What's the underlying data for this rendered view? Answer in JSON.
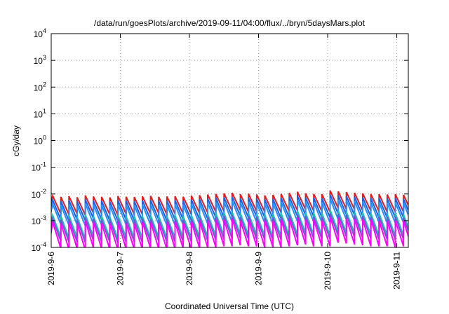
{
  "chart_data": {
    "type": "line",
    "title": "/data/run/goesPlots/archive/2019-09-11/04:00/flux/../bryn/5daysMars.plot",
    "xlabel": "Coordinated Universal Time (UTC)",
    "ylabel": "cGy/day",
    "yscale": "log",
    "ylim": [
      0.0001,
      10000
    ],
    "xlim": [
      "2019-09-06T00:00",
      "2019-09-11T04:00"
    ],
    "x_ticks": [
      "2019-9-6",
      "2019-9-7",
      "2019-9-8",
      "2019-9-9",
      "2019-9-10",
      "2019-9-11"
    ],
    "y_ticks": [
      {
        "base": "10",
        "exp": "-4"
      },
      {
        "base": "10",
        "exp": "-3"
      },
      {
        "base": "10",
        "exp": "-2"
      },
      {
        "base": "10",
        "exp": "-1"
      },
      {
        "base": "10",
        "exp": "0"
      },
      {
        "base": "10",
        "exp": "1"
      },
      {
        "base": "10",
        "exp": "2"
      },
      {
        "base": "10",
        "exp": "3"
      },
      {
        "base": "10",
        "exp": "4"
      }
    ],
    "grid": true,
    "pattern": "sawtooth",
    "cycle_peaks": [
      "2019-09-06T00:30",
      "2019-09-06T03:20",
      "2019-09-06T06:10",
      "2019-09-06T09:00",
      "2019-09-06T11:50",
      "2019-09-06T14:40",
      "2019-09-06T17:30",
      "2019-09-06T20:20",
      "2019-09-06T23:10",
      "2019-09-07T02:00",
      "2019-09-07T04:50",
      "2019-09-07T07:40",
      "2019-09-07T10:30",
      "2019-09-07T13:20",
      "2019-09-07T16:10",
      "2019-09-07T19:00",
      "2019-09-07T21:50",
      "2019-09-08T00:40",
      "2019-09-08T03:30",
      "2019-09-08T06:20",
      "2019-09-08T09:10",
      "2019-09-08T12:00",
      "2019-09-08T14:50",
      "2019-09-08T17:40",
      "2019-09-08T20:30",
      "2019-09-08T23:20",
      "2019-09-09T02:10",
      "2019-09-09T05:00",
      "2019-09-09T07:50",
      "2019-09-09T10:40",
      "2019-09-09T13:30",
      "2019-09-09T16:20",
      "2019-09-09T19:10",
      "2019-09-09T22:00",
      "2019-09-10T00:50",
      "2019-09-10T03:40",
      "2019-09-10T06:30",
      "2019-09-10T09:20",
      "2019-09-10T12:10",
      "2019-09-10T15:00",
      "2019-09-10T17:50",
      "2019-09-10T20:40",
      "2019-09-10T23:30",
      "2019-09-11T02:20"
    ],
    "series": [
      {
        "color": "#e41a1c",
        "peak": [
          0.0085,
          0.0078,
          0.0082,
          0.0075,
          0.0088,
          0.008,
          0.0078,
          0.0074,
          0.0083,
          0.0079,
          0.0077,
          0.0081,
          0.0085,
          0.0078,
          0.008,
          0.0082,
          0.0079,
          0.0086,
          0.009,
          0.0095,
          0.01,
          0.0105,
          0.011,
          0.0098,
          0.0102,
          0.0095,
          0.0088,
          0.0092,
          0.01,
          0.011,
          0.012,
          0.0105,
          0.01,
          0.0098,
          0.0135,
          0.0125,
          0.0118,
          0.011,
          0.0105,
          0.01,
          0.0098,
          0.0095,
          0.0098,
          0.0092
        ],
        "trough": [
          0.0018,
          0.0017,
          0.0018,
          0.0016,
          0.0019,
          0.0018,
          0.0017,
          0.0016,
          0.0018,
          0.0017,
          0.0017,
          0.0018,
          0.0019,
          0.0017,
          0.0018,
          0.0018,
          0.0017,
          0.0019,
          0.002,
          0.0021,
          0.0022,
          0.0023,
          0.0024,
          0.0021,
          0.0022,
          0.0021,
          0.0019,
          0.002,
          0.0022,
          0.0024,
          0.0026,
          0.0023,
          0.0022,
          0.0021,
          0.0029,
          0.0027,
          0.0026,
          0.0024,
          0.0023,
          0.0022,
          0.0021,
          0.0021,
          0.0021,
          0.002
        ]
      },
      {
        "color": "#1f5fe0",
        "peak": [
          0.006,
          0.0055,
          0.0058,
          0.0053,
          0.0062,
          0.0056,
          0.0055,
          0.0052,
          0.0058,
          0.0056,
          0.0054,
          0.0057,
          0.006,
          0.0055,
          0.0056,
          0.0058,
          0.0056,
          0.0061,
          0.0064,
          0.0067,
          0.0071,
          0.0074,
          0.0078,
          0.0069,
          0.0072,
          0.0067,
          0.0062,
          0.0065,
          0.0071,
          0.0078,
          0.0085,
          0.0074,
          0.0071,
          0.0069,
          0.0095,
          0.0088,
          0.0083,
          0.0078,
          0.0074,
          0.0071,
          0.0069,
          0.0067,
          0.0069,
          0.0065
        ],
        "trough": [
          0.0011,
          0.001,
          0.0011,
          0.001,
          0.0012,
          0.0011,
          0.001,
          0.001,
          0.0011,
          0.001,
          0.001,
          0.0011,
          0.0011,
          0.001,
          0.0011,
          0.0011,
          0.001,
          0.0011,
          0.0012,
          0.0013,
          0.0013,
          0.0014,
          0.0015,
          0.0013,
          0.0014,
          0.0013,
          0.0012,
          0.0012,
          0.0013,
          0.0015,
          0.0016,
          0.0014,
          0.0013,
          0.0013,
          0.0018,
          0.0017,
          0.0016,
          0.0015,
          0.0014,
          0.0013,
          0.0013,
          0.0013,
          0.0013,
          0.0012
        ]
      },
      {
        "color": "#1e90ff",
        "peak": [
          0.0042,
          0.0039,
          0.0041,
          0.0037,
          0.0044,
          0.004,
          0.0039,
          0.0037,
          0.0041,
          0.0039,
          0.0038,
          0.004,
          0.0042,
          0.0039,
          0.004,
          0.0041,
          0.0039,
          0.0043,
          0.0045,
          0.0047,
          0.005,
          0.0052,
          0.0055,
          0.0049,
          0.0051,
          0.0047,
          0.0044,
          0.0046,
          0.005,
          0.0055,
          0.006,
          0.0052,
          0.005,
          0.0049,
          0.0067,
          0.0062,
          0.0059,
          0.0055,
          0.0052,
          0.005,
          0.0049,
          0.0047,
          0.0049,
          0.0046
        ],
        "trough": [
          0.00072,
          0.00066,
          0.0007,
          0.00064,
          0.00075,
          0.00068,
          0.00066,
          0.00063,
          0.0007,
          0.00067,
          0.00065,
          0.00069,
          0.00072,
          0.00066,
          0.00068,
          0.0007,
          0.00067,
          0.00073,
          0.00077,
          0.00081,
          0.00085,
          0.00089,
          0.00094,
          0.00083,
          0.00087,
          0.00081,
          0.00075,
          0.00078,
          0.00085,
          0.00094,
          0.001,
          0.00089,
          0.00085,
          0.00083,
          0.0011,
          0.0011,
          0.001,
          0.00094,
          0.00089,
          0.00085,
          0.00083,
          0.00081,
          0.00083,
          0.00078
        ]
      },
      {
        "color": "#20c0b0",
        "peak": [
          0.0016,
          0.0015,
          0.0016,
          0.0014,
          0.0017,
          0.0015,
          0.0015,
          0.0014,
          0.0016,
          0.0015,
          0.0015,
          0.0015,
          0.0016,
          0.0015,
          0.0015,
          0.0016,
          0.0015,
          0.0016,
          0.0017,
          0.0018,
          0.0019,
          0.002,
          0.0021,
          0.0019,
          0.0019,
          0.0018,
          0.0017,
          0.0018,
          0.0019,
          0.0021,
          0.0023,
          0.002,
          0.0019,
          0.0019,
          0.0026,
          0.0024,
          0.0022,
          0.0021,
          0.002,
          0.0019,
          0.0019,
          0.0018,
          0.0019,
          0.0017
        ],
        "trough": [
          0.00024,
          0.00022,
          0.00023,
          0.00021,
          0.00025,
          0.00023,
          0.00022,
          0.00021,
          0.00023,
          0.00022,
          0.00022,
          0.00023,
          0.00024,
          0.00022,
          0.00023,
          0.00023,
          0.00022,
          0.00024,
          0.00026,
          0.00027,
          0.00028,
          0.0003,
          0.00031,
          0.00028,
          0.00029,
          0.00027,
          0.00025,
          0.00026,
          0.00028,
          0.00031,
          0.00034,
          0.0003,
          0.00028,
          0.00028,
          0.00038,
          0.00035,
          0.00034,
          0.00031,
          0.0003,
          0.00028,
          0.00028,
          0.00027,
          0.00028,
          0.00026
        ]
      },
      {
        "color": "#6a5acd",
        "peak": [
          0.0012,
          0.0011,
          0.0012,
          0.0011,
          0.0013,
          0.0012,
          0.0011,
          0.0011,
          0.0012,
          0.0011,
          0.0011,
          0.0012,
          0.0012,
          0.0011,
          0.0012,
          0.0012,
          0.0011,
          0.0012,
          0.0013,
          0.0014,
          0.0014,
          0.0015,
          0.0016,
          0.0014,
          0.0015,
          0.0014,
          0.0013,
          0.0013,
          0.0014,
          0.0016,
          0.0017,
          0.0015,
          0.0014,
          0.0014,
          0.0019,
          0.0018,
          0.0017,
          0.0016,
          0.0015,
          0.0014,
          0.0014,
          0.0014,
          0.0014,
          0.0013
        ],
        "trough": [
          0.00017,
          0.00016,
          0.00016,
          0.00015,
          0.00018,
          0.00016,
          0.00016,
          0.00015,
          0.00016,
          0.00016,
          0.00015,
          0.00016,
          0.00017,
          0.00016,
          0.00016,
          0.00016,
          0.00016,
          0.00017,
          0.00018,
          0.00019,
          0.0002,
          0.00021,
          0.00022,
          0.0002,
          0.0002,
          0.00019,
          0.00018,
          0.00019,
          0.0002,
          0.00022,
          0.00024,
          0.00021,
          0.0002,
          0.0002,
          0.00027,
          0.00025,
          0.00024,
          0.00022,
          0.00021,
          0.0002,
          0.0002,
          0.00019,
          0.0002,
          0.00019
        ]
      },
      {
        "color": "#ff00ff",
        "peak": [
          0.0009,
          0.0008,
          0.0009,
          0.0008,
          0.001,
          0.0009,
          0.0008,
          0.0008,
          0.0009,
          0.0008,
          0.0008,
          0.0009,
          0.0009,
          0.0008,
          0.0009,
          0.0009,
          0.0008,
          0.0009,
          0.001,
          0.001,
          0.0011,
          0.0011,
          0.0012,
          0.001,
          0.0011,
          0.001,
          0.001,
          0.001,
          0.0011,
          0.0012,
          0.0013,
          0.0011,
          0.0011,
          0.001,
          0.0014,
          0.0013,
          0.0012,
          0.0012,
          0.0011,
          0.0011,
          0.001,
          0.001,
          0.001,
          0.001
        ],
        "trough": [
          9e-05,
          8.5e-05,
          9e-05,
          8e-05,
          9.5e-05,
          9e-05,
          8.5e-05,
          8e-05,
          9e-05,
          8.5e-05,
          8.5e-05,
          9e-05,
          9e-05,
          8.5e-05,
          9e-05,
          9e-05,
          8.5e-05,
          9.5e-05,
          0.0001,
          0.0001,
          0.00011,
          0.00011,
          0.00012,
          0.00011,
          0.00011,
          0.0001,
          0.0001,
          0.0001,
          0.00011,
          0.00012,
          0.00013,
          0.00011,
          0.00011,
          0.00011,
          0.00015,
          0.00014,
          0.00013,
          0.00012,
          0.00011,
          0.00011,
          0.00011,
          0.0001,
          0.00011,
          0.0001
        ]
      }
    ]
  }
}
